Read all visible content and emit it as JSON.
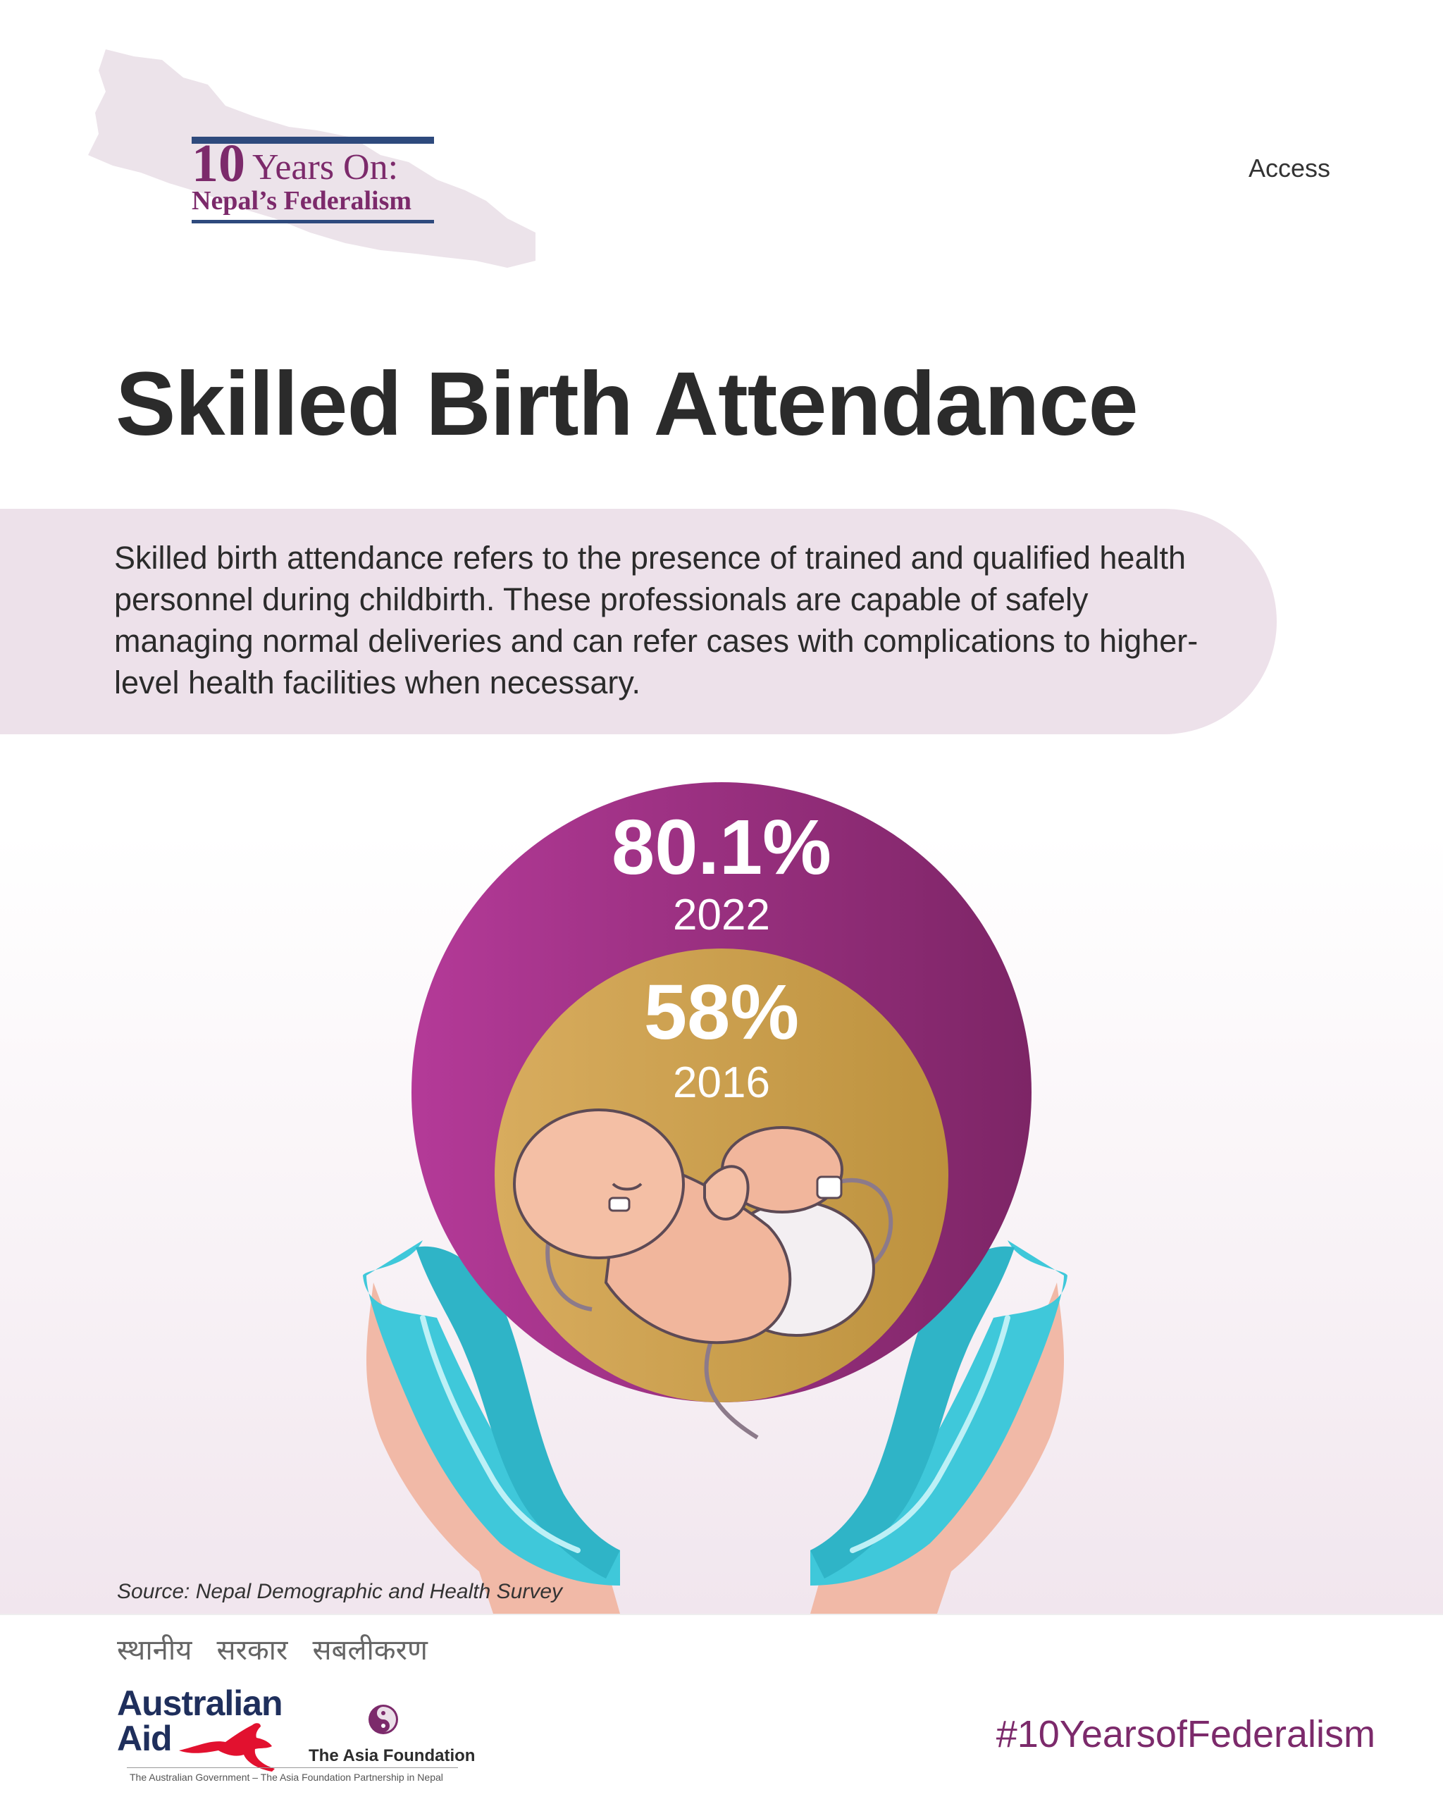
{
  "header": {
    "logo_number": "10",
    "logo_line1": "Years On:",
    "logo_line2": "Nepal’s Federalism",
    "category": "Access"
  },
  "title": "Skilled Birth Attendance",
  "description": "Skilled birth attendance refers to the presence of trained and qualified health personnel during childbirth. These professionals are capable of safely managing normal deliveries and can refer cases with complications to higher-level health facilities when necessary.",
  "chart_data": {
    "type": "bubble",
    "series": [
      {
        "label": "80.1%",
        "year": "2022",
        "value": 80.1,
        "color": "#9b2f86"
      },
      {
        "label": "58%",
        "year": "2016",
        "value": 58,
        "color": "#c9a050"
      }
    ]
  },
  "source": "Source: Nepal Demographic and Health Survey",
  "footer": {
    "tagline": "स्थानीय सरकार सबलीकरण",
    "aus_aid": [
      "Australian",
      "Aid"
    ],
    "taf_name": "The Asia Foundation",
    "partnership": "The Australian Government – The Asia Foundation Partnership in Nepal",
    "hashtag": "#10YearsofFederalism"
  },
  "colors": {
    "brand_purple": "#7c2a6b",
    "navy": "#2e4a7d",
    "glove_cyan": "#3cc6d8"
  },
  "icons": [
    "nepal-map-icon",
    "newborn-baby-illustration",
    "gloved-hands-illustration",
    "kangaroo-icon",
    "asia-foundation-logo-icon"
  ]
}
